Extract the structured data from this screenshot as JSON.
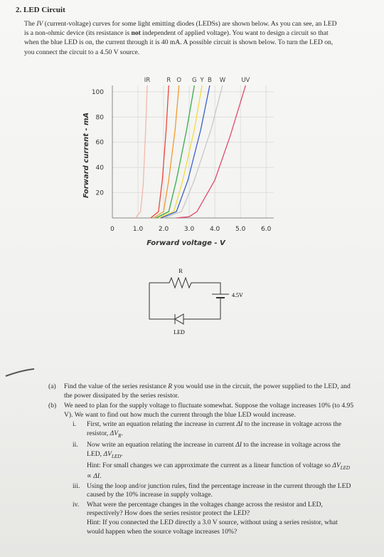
{
  "header": {
    "title": "2. LED Circuit"
  },
  "intro": [
    "The ",
    {
      "text": "IV",
      "style": "italic"
    },
    " (current-voltage) curves for some light emitting diodes (LEDSs) are shown below. As you can see, an LED is a non-ohmic device (its resistance is ",
    {
      "text": "not",
      "style": "bold"
    },
    " independent of applied voltage). You want to design a circuit so that when the blue LED is on, the current through it is 40 mA. A possible circuit is shown below. To turn the LED on, you connect the circuit to a 4.50 V source."
  ],
  "figure": {
    "type": "line",
    "x_label": "Forward voltage - V",
    "y_label": "Forward current - mA",
    "xlim": [
      0,
      6.3
    ],
    "ylim": [
      0,
      105
    ],
    "xticks": [
      0,
      {
        "value": 1,
        "label": "1.0"
      },
      {
        "value": 2,
        "label": "2.0"
      },
      {
        "value": 3,
        "label": "3.0"
      },
      {
        "value": 4,
        "label": "4.0"
      },
      {
        "value": 5,
        "label": "5.0"
      },
      {
        "value": 6,
        "label": "6.0"
      }
    ],
    "yticks": [
      20,
      40,
      60,
      80,
      100
    ],
    "grid": true,
    "series": [
      {
        "name": "IR",
        "color": "#f2b8a8",
        "x": [
          0.9,
          1.1,
          1.2,
          1.3,
          1.36
        ],
        "values": [
          0,
          5,
          25,
          70,
          105
        ]
      },
      {
        "name": "R",
        "color": "#e8473a",
        "x": [
          1.5,
          1.8,
          1.95,
          2.1,
          2.2
        ],
        "values": [
          0,
          5,
          30,
          70,
          105
        ]
      },
      {
        "name": "O",
        "color": "#f39a2c",
        "x": [
          1.6,
          2.0,
          2.2,
          2.45,
          2.6
        ],
        "values": [
          0,
          5,
          30,
          70,
          105
        ]
      },
      {
        "name": "G",
        "color": "#3aaa4a",
        "x": [
          1.7,
          2.2,
          2.5,
          2.9,
          3.2
        ],
        "values": [
          0,
          5,
          30,
          70,
          105
        ]
      },
      {
        "name": "Y",
        "color": "#f2dc3c",
        "x": [
          1.8,
          2.4,
          2.75,
          3.2,
          3.5
        ],
        "values": [
          0,
          5,
          30,
          70,
          105
        ]
      },
      {
        "name": "B",
        "color": "#3a5fc8",
        "x": [
          1.9,
          2.5,
          2.95,
          3.45,
          3.8
        ],
        "values": [
          0,
          5,
          30,
          70,
          105
        ]
      },
      {
        "name": "W",
        "color": "#c8c8c8",
        "x": [
          2.0,
          2.7,
          3.2,
          3.85,
          4.3
        ],
        "values": [
          0,
          5,
          30,
          70,
          105
        ]
      },
      {
        "name": "UV",
        "color": "#e04a6a",
        "x": [
          2.5,
          3.0,
          3.3,
          4.0,
          4.6,
          5.2
        ],
        "values": [
          0,
          1,
          5,
          30,
          65,
          105
        ]
      }
    ]
  },
  "circuit": {
    "resistor_label": "R",
    "source_label": "4.5V",
    "led_label": "LED"
  },
  "questions": [
    {
      "label": "(a)",
      "text": [
        "Find the value of the series resistance ",
        {
          "text": "R",
          "style": "italic"
        },
        " you would use in the circuit, the power supplied to the LED, and the power dissipated by the series resistor."
      ]
    },
    {
      "label": "(b)",
      "text": [
        "We need to plan for the supply voltage to fluctuate somewhat. Suppose the voltage increases 10% (to 4.95 V). We want to find out how much the current through the blue LED would increase."
      ],
      "items": [
        {
          "label": "i.",
          "text": [
            "First, write an equation relating the increase in current ",
            {
              "text": "ΔI",
              "style": "italic"
            },
            " to the increase in voltage across the resistor, ",
            {
              "text": "ΔV",
              "style": "italic"
            },
            {
              "text": "R",
              "style": "sub"
            },
            "."
          ]
        },
        {
          "label": "ii.",
          "text": [
            "Now write an equation relating the increase in current ",
            {
              "text": "ΔI",
              "style": "italic"
            },
            " to the increase in voltage across the LED, ",
            {
              "text": "ΔV",
              "style": "italic"
            },
            {
              "text": "LED",
              "style": "sub"
            },
            "."
          ],
          "hint": [
            "Hint: For small changes we can approximate the current as a linear function of voltage so ",
            {
              "text": "ΔV",
              "style": "italic"
            },
            {
              "text": "LED",
              "style": "sub"
            },
            " ∝ ",
            {
              "text": "ΔI",
              "style": "italic"
            },
            "."
          ]
        },
        {
          "label": "iii.",
          "text": [
            "Using the loop and/or junction rules, find the percentage increase in the current through the LED caused by the 10% increase in supply voltage."
          ]
        },
        {
          "label": "iv.",
          "text": [
            "What were the percentage changes in the voltages change across the resistor and LED, respectively? How does the series resistor protect the LED?"
          ],
          "hint": [
            "Hint: If you connected the LED directly a 3.0 V source, without using a series resistor, what would happen when the source voltage increases 10%?"
          ]
        }
      ]
    }
  ]
}
